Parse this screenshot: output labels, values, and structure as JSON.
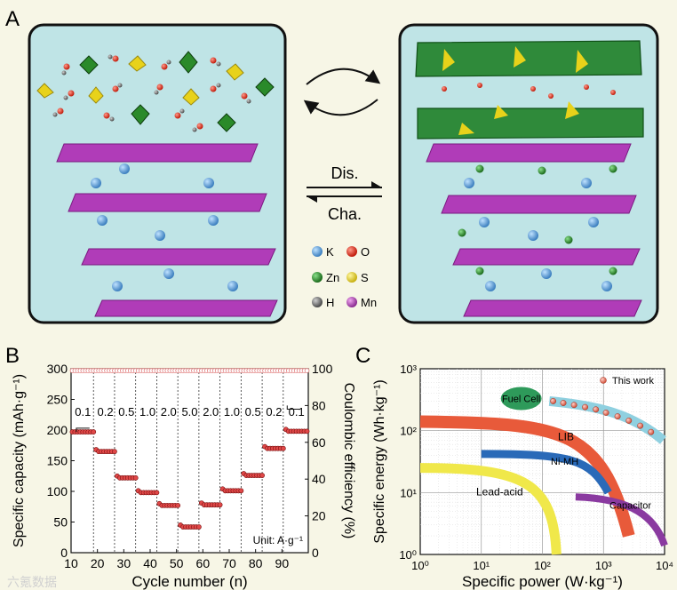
{
  "figure": {
    "panel_labels": {
      "a": "A",
      "b": "B",
      "c": "C"
    },
    "panel_a": {
      "discharge_label": "Dis.",
      "charge_label": "Cha.",
      "legend": [
        {
          "symbol": "K",
          "color": "#4a90c8"
        },
        {
          "symbol": "O",
          "color": "#d42a1a"
        },
        {
          "symbol": "Zn",
          "color": "#2a8a2a"
        },
        {
          "symbol": "S",
          "color": "#e8d21a"
        },
        {
          "symbol": "H",
          "color": "#6a6a6a"
        },
        {
          "symbol": "Mn",
          "color": "#a23ca8"
        }
      ]
    },
    "watermark": "六氪数据"
  },
  "chart_data": [
    {
      "type": "scatter",
      "panel": "B",
      "xlabel": "Cycle number (n)",
      "ylabel": "Specific capacity (mAh·g⁻¹)",
      "y2label": "Coulombic efficiency (%)",
      "xlim": [
        10,
        100
      ],
      "ylim": [
        0,
        300
      ],
      "y2lim": [
        0,
        100
      ],
      "xticks": [
        10,
        20,
        30,
        40,
        50,
        60,
        70,
        80,
        90
      ],
      "yticks": [
        0,
        50,
        100,
        150,
        200,
        250,
        300
      ],
      "y2ticks": [
        0,
        20,
        40,
        60,
        80,
        100
      ],
      "rate_labels": [
        "0.1",
        "0.2",
        "0.5",
        "1.0",
        "2.0",
        "5.0",
        "2.0",
        "1.0",
        "0.5",
        "0.2",
        "0.1"
      ],
      "unit_note": "Unit: A·g⁻¹",
      "segments": [
        {
          "rate": "0.1",
          "start": 10,
          "end": 18,
          "capacity": 197
        },
        {
          "rate": "0.2",
          "start": 19,
          "end": 26,
          "capacity": 165
        },
        {
          "rate": "0.5",
          "start": 27,
          "end": 34,
          "capacity": 122
        },
        {
          "rate": "1.0",
          "start": 35,
          "end": 42,
          "capacity": 98
        },
        {
          "rate": "2.0",
          "start": 43,
          "end": 50,
          "capacity": 77
        },
        {
          "rate": "5.0",
          "start": 51,
          "end": 58,
          "capacity": 42
        },
        {
          "rate": "2.0",
          "start": 59,
          "end": 66,
          "capacity": 78
        },
        {
          "rate": "1.0",
          "start": 67,
          "end": 74,
          "capacity": 101
        },
        {
          "rate": "0.5",
          "start": 75,
          "end": 82,
          "capacity": 126
        },
        {
          "rate": "0.2",
          "start": 83,
          "end": 90,
          "capacity": 170
        },
        {
          "rate": "0.1",
          "start": 91,
          "end": 99,
          "capacity": 198
        }
      ],
      "efficiency_percent": 99,
      "vlines": [
        18.5,
        26.5,
        34.5,
        42.5,
        50.5,
        58.5,
        66.5,
        74.5,
        82.5,
        90.5
      ]
    },
    {
      "type": "line",
      "panel": "C",
      "xscale": "log",
      "yscale": "log",
      "xlabel": "Specific power (W·kg⁻¹)",
      "ylabel": "Specific energy (Wh·kg⁻¹)",
      "xlim": [
        1,
        10000
      ],
      "ylim": [
        1,
        1000
      ],
      "xticks": [
        "10⁰",
        "10¹",
        "10²",
        "10³",
        "10⁴"
      ],
      "yticks": [
        "10⁰",
        "10¹",
        "10²",
        "10³"
      ],
      "legend": "This work",
      "regions": [
        {
          "name": "Fuel Cell",
          "color": "#2e9a5a"
        },
        {
          "name": "LIB",
          "color": "#e85a3a"
        },
        {
          "name": "Ni-MH",
          "color": "#2a6ab8"
        },
        {
          "name": "Lead-acid",
          "color": "#f0e84a"
        },
        {
          "name": "Capacitor",
          "color": "#8a3aa0"
        }
      ],
      "this_work": {
        "power": [
          150,
          220,
          330,
          500,
          750,
          1100,
          1700,
          2600,
          4000,
          6000
        ],
        "energy": [
          300,
          280,
          260,
          240,
          220,
          195,
          170,
          145,
          120,
          95
        ]
      }
    }
  ]
}
